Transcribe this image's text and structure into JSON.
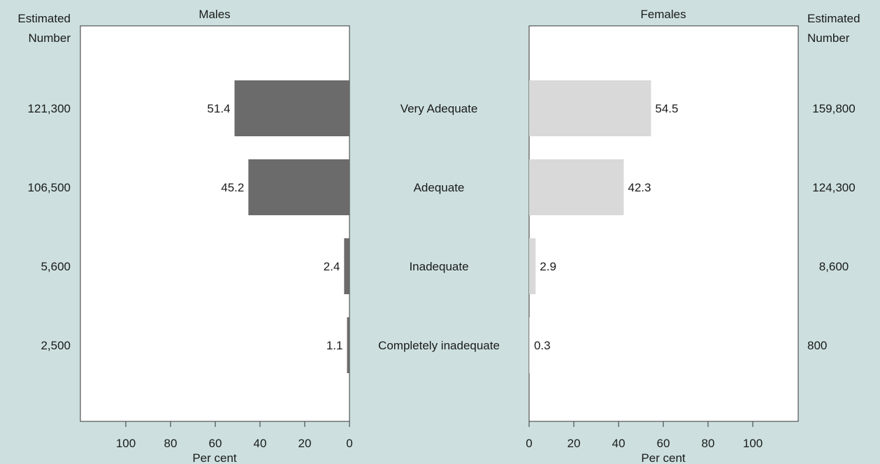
{
  "colors": {
    "background": "#cde0df",
    "panel": "#ffffff",
    "males_bar": "#6b6b6b",
    "females_bar": "#d9d9d9",
    "axis": "#333333"
  },
  "chart_data": {
    "type": "bar",
    "orientation": "horizontal",
    "layout": "population-pyramid",
    "categories": [
      "Very Adequate",
      "Adequate",
      "Inadequate",
      "Completely inadequate"
    ],
    "series": [
      {
        "name": "Males",
        "values": [
          51.4,
          45.2,
          2.4,
          1.1
        ],
        "estimated_number": [
          "121,300",
          "106,500",
          "5,600",
          "2,500"
        ]
      },
      {
        "name": "Females",
        "values": [
          54.5,
          42.3,
          2.9,
          0.3
        ],
        "estimated_number": [
          "159,800",
          "124,300",
          "8,600",
          "800"
        ]
      }
    ],
    "xlabel": "Per cent",
    "xlim": [
      0,
      120
    ],
    "xticks": [
      0,
      20,
      40,
      60,
      80,
      100
    ],
    "estimated_number_header": [
      "Estimated",
      "Number"
    ],
    "grid": false,
    "legend": "none"
  }
}
